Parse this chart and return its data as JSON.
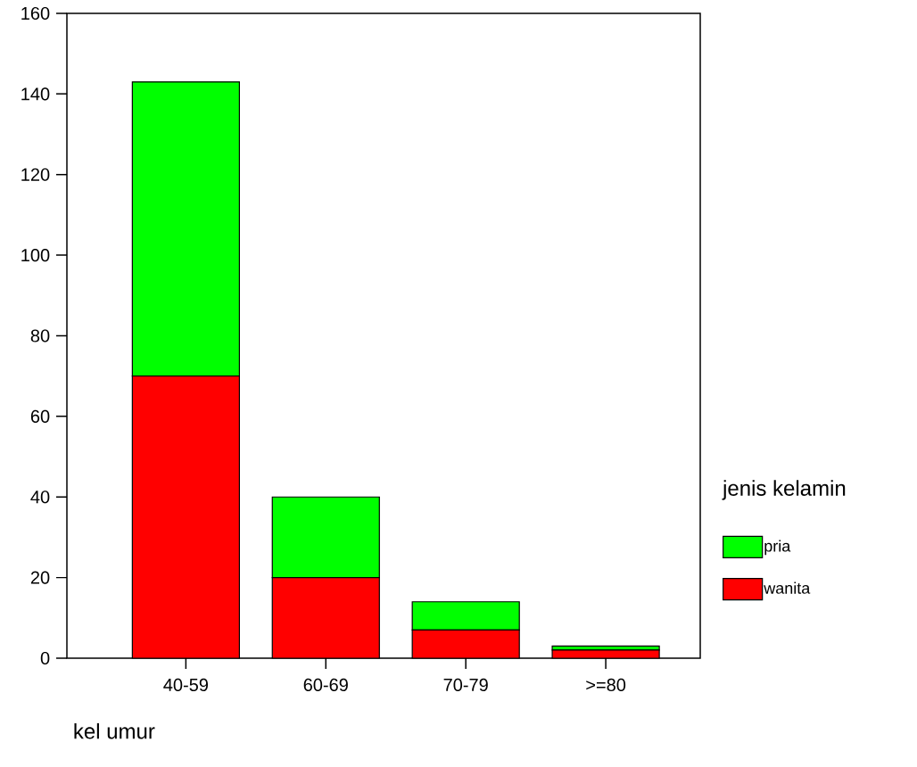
{
  "chart_data": {
    "type": "bar",
    "stacked": true,
    "xlabel": "kel umur",
    "legend_title": "jenis kelamin",
    "categories": [
      "40-59",
      "60-69",
      "70-79",
      ">=80"
    ],
    "series": [
      {
        "name": "wanita",
        "color": "#ff0000",
        "values": [
          70,
          20,
          7,
          2
        ]
      },
      {
        "name": "pria",
        "color": "#00ff00",
        "values": [
          73,
          20,
          7,
          1
        ]
      }
    ],
    "ylim": [
      0,
      160
    ],
    "yticks": [
      0,
      20,
      40,
      60,
      80,
      100,
      120,
      140,
      160
    ],
    "legend": "right",
    "grid": false
  }
}
